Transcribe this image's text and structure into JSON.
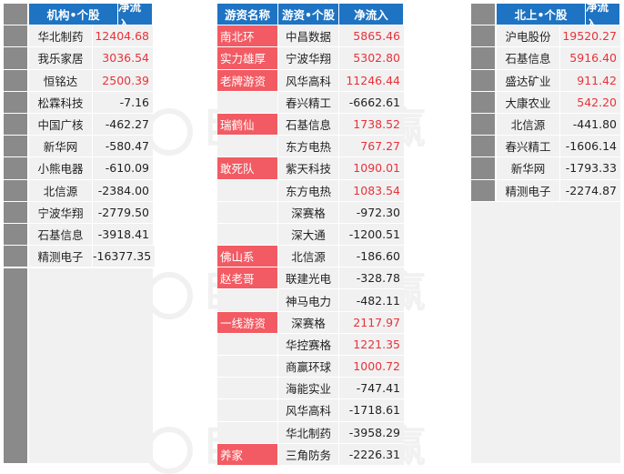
{
  "institution": {
    "header": {
      "name": "机构•个股",
      "flow": "净流入"
    },
    "rows": [
      {
        "name": "华北制药",
        "value": "12404.68",
        "sign": "pos"
      },
      {
        "name": "我乐家居",
        "value": "3036.54",
        "sign": "pos"
      },
      {
        "name": "恒铭达",
        "value": "2500.39",
        "sign": "pos"
      },
      {
        "name": "松霖科技",
        "value": "-7.16",
        "sign": "neg"
      },
      {
        "name": "中国广核",
        "value": "-462.27",
        "sign": "neg"
      },
      {
        "name": "新华网",
        "value": "-580.47",
        "sign": "neg"
      },
      {
        "name": "小熊电器",
        "value": "-610.09",
        "sign": "neg"
      },
      {
        "name": "北信源",
        "value": "-2384.00",
        "sign": "neg"
      },
      {
        "name": "宁波华翔",
        "value": "-2779.50",
        "sign": "neg"
      },
      {
        "name": "石基信息",
        "value": "-3918.41",
        "sign": "neg"
      },
      {
        "name": "精测电子",
        "value": "-16377.35",
        "sign": "neg"
      }
    ]
  },
  "hot_money": {
    "header": {
      "alias": "游资名称",
      "name": "游资•个股",
      "flow": "净流入"
    },
    "rows": [
      {
        "alias": "南北环",
        "name": "中昌数据",
        "value": "5865.46",
        "sign": "pos"
      },
      {
        "alias": "实力雄厚",
        "name": "宁波华翔",
        "value": "5302.80",
        "sign": "pos"
      },
      {
        "alias": "老牌游资",
        "name": "风华高科",
        "value": "11246.44",
        "sign": "pos"
      },
      {
        "alias": "",
        "name": "春兴精工",
        "value": "-6662.61",
        "sign": "neg"
      },
      {
        "alias": "瑞鹤仙",
        "name": "石基信息",
        "value": "1738.52",
        "sign": "pos"
      },
      {
        "alias": "",
        "name": "东方电热",
        "value": "767.27",
        "sign": "pos"
      },
      {
        "alias": "敢死队",
        "name": "紫天科技",
        "value": "1090.01",
        "sign": "pos"
      },
      {
        "alias": "",
        "name": "东方电热",
        "value": "1083.54",
        "sign": "pos"
      },
      {
        "alias": "",
        "name": "深赛格",
        "value": "-972.30",
        "sign": "neg"
      },
      {
        "alias": "",
        "name": "深大通",
        "value": "-1200.51",
        "sign": "neg"
      },
      {
        "alias": "佛山系",
        "name": "北信源",
        "value": "-186.60",
        "sign": "neg"
      },
      {
        "alias": "赵老哥",
        "name": "联建光电",
        "value": "-328.78",
        "sign": "neg"
      },
      {
        "alias": "",
        "name": "神马电力",
        "value": "-482.11",
        "sign": "neg"
      },
      {
        "alias": "一线游资",
        "name": "深赛格",
        "value": "2117.97",
        "sign": "pos"
      },
      {
        "alias": "",
        "name": "华控赛格",
        "value": "1221.35",
        "sign": "pos"
      },
      {
        "alias": "",
        "name": "商赢环球",
        "value": "1000.72",
        "sign": "pos"
      },
      {
        "alias": "",
        "name": "海能实业",
        "value": "-747.41",
        "sign": "neg"
      },
      {
        "alias": "",
        "name": "风华高科",
        "value": "-1718.61",
        "sign": "neg"
      },
      {
        "alias": "",
        "name": "华北制药",
        "value": "-3958.29",
        "sign": "neg"
      },
      {
        "alias": "养家",
        "name": "三角防务",
        "value": "-2226.31",
        "sign": "neg"
      }
    ]
  },
  "northbound": {
    "header": {
      "name": "北上•个股",
      "flow": "净流入"
    },
    "rows": [
      {
        "name": "沪电股份",
        "value": "19520.27",
        "sign": "pos"
      },
      {
        "name": "石基信息",
        "value": "5916.40",
        "sign": "pos"
      },
      {
        "name": "盛达矿业",
        "value": "911.42",
        "sign": "pos"
      },
      {
        "name": "大康农业",
        "value": "542.20",
        "sign": "pos"
      },
      {
        "name": "北信源",
        "value": "-441.80",
        "sign": "neg"
      },
      {
        "name": "春兴精工",
        "value": "-1606.14",
        "sign": "neg"
      },
      {
        "name": "新华网",
        "value": "-1793.33",
        "sign": "neg"
      },
      {
        "name": "精测电子",
        "value": "-2274.87",
        "sign": "neg"
      }
    ]
  },
  "watermark": {
    "text": "巨丰数据赢"
  },
  "colors": {
    "header": "#1e73c2",
    "positive": "#e8323a",
    "alias_highlight": "#f25b63",
    "cell": "#f1f1f1",
    "marker": "#8a8a8a"
  }
}
